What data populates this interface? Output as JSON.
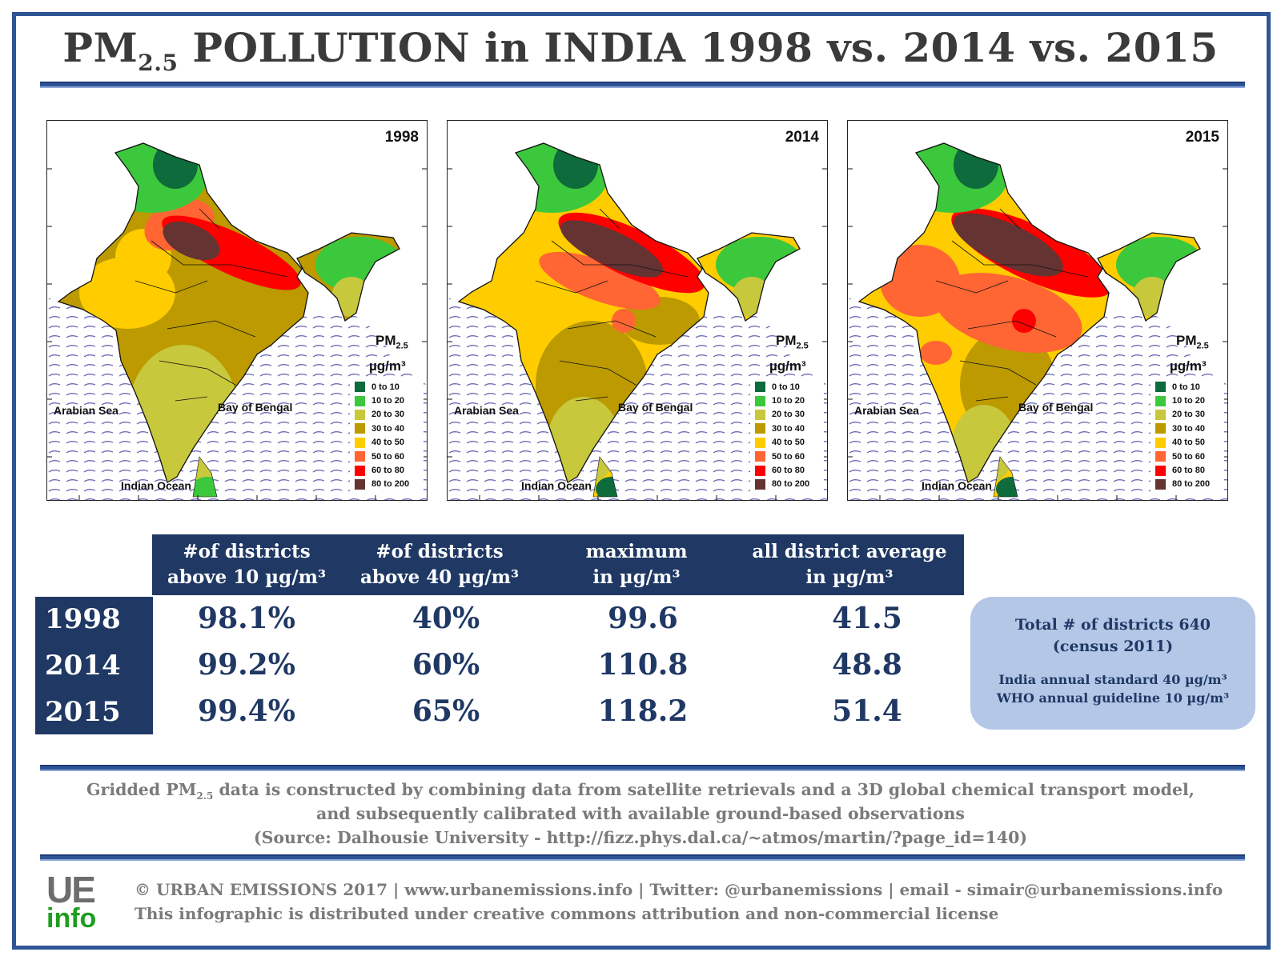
{
  "header": {
    "title_pre": "PM",
    "title_sub": "2.5",
    "title_post": " POLLUTION in INDIA 1998 vs. 2014 vs. 2015"
  },
  "maps": [
    {
      "year": "1998"
    },
    {
      "year": "2014"
    },
    {
      "year": "2015"
    }
  ],
  "map_labels": {
    "arabian_sea": "Arabian Sea",
    "bay_of_bengal": "Bay of Bengal",
    "indian_ocean": "Indian Ocean",
    "pm": "PM",
    "pm_sub": "2.5",
    "unit": "µg/m³"
  },
  "legend": [
    {
      "label": "0  to  10",
      "color": "#0e6b3b"
    },
    {
      "label": "10  to  20",
      "color": "#3cc83c"
    },
    {
      "label": "20  to  30",
      "color": "#c8c83c"
    },
    {
      "label": "30  to  40",
      "color": "#bc9a00"
    },
    {
      "label": "40  to  50",
      "color": "#ffcc00"
    },
    {
      "label": "50  to  60",
      "color": "#ff6633"
    },
    {
      "label": "60  to  80",
      "color": "#ff0000"
    },
    {
      "label": "80  to  200",
      "color": "#663333"
    }
  ],
  "table": {
    "headers": [
      {
        "line1": "#of districts",
        "line2": "above 10 µg/m³"
      },
      {
        "line1": "#of districts",
        "line2": "above 40 µg/m³"
      },
      {
        "line1": "maximum",
        "line2": "in µg/m³"
      },
      {
        "line1": "all district average",
        "line2": "in µg/m³"
      }
    ],
    "rows": [
      {
        "year": "1998",
        "cells": [
          "98.1%",
          "40%",
          "99.6",
          "41.5"
        ]
      },
      {
        "year": "2014",
        "cells": [
          "99.2%",
          "60%",
          "110.8",
          "48.8"
        ]
      },
      {
        "year": "2015",
        "cells": [
          "99.4%",
          "65%",
          "118.2",
          "51.4"
        ]
      }
    ]
  },
  "info": {
    "line1": "Total # of districts 640",
    "line2": "(census 2011)",
    "line3": "India annual standard 40 µg/m³",
    "line4": "WHO annual guideline 10 µg/m³"
  },
  "note": {
    "line1_pre": "Gridded PM",
    "line1_sub": "2.5",
    "line1_post": " data is constructed by combining data from satellite retrievals and a 3D global chemical transport model,",
    "line2": "and subsequently calibrated with available ground-based observations",
    "line3": "(Source:  Dalhousie University - http://fizz.phys.dal.ca/~atmos/martin/?page_id=140)"
  },
  "footer": {
    "logo_top": "UE",
    "logo_bottom": "info",
    "line1": "© URBAN EMISSIONS 2017 | www.urbanemissions.info | Twitter: @urbanemissions | email - simair@urbanemissions.info",
    "line2": "This infographic is distributed under creative commons attribution and non-commercial license"
  },
  "colors": {
    "accent": "#2f5597",
    "navy": "#1f3864",
    "info_box": "#b4c7e7",
    "ocean_waves": "#5a5aa8"
  }
}
